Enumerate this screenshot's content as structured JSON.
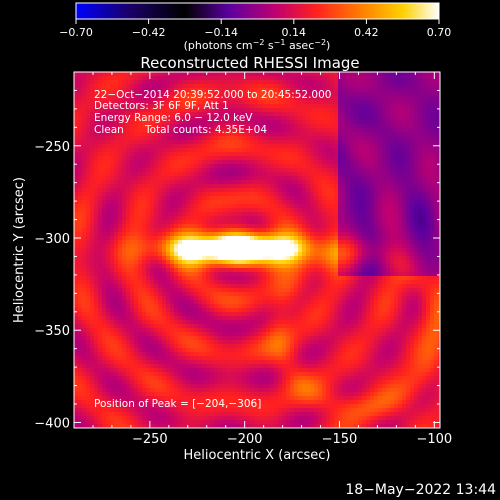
{
  "colorbar": {
    "tick_labels": [
      "−0.70",
      "−0.42",
      "−0.14",
      "0.14",
      "0.42",
      "0.70"
    ],
    "tick_values": [
      -0.7,
      -0.42,
      -0.14,
      0.14,
      0.42,
      0.7
    ],
    "range": [
      -0.7,
      0.7
    ],
    "units_prefix": "(photons cm",
    "units_exp1": "−2",
    "units_mid1": " s",
    "units_exp2": "−1",
    "units_mid2": " asec",
    "units_exp3": "−2",
    "units_suffix": ")",
    "colormap": [
      "#0000ff",
      "#1a0066",
      "#000000",
      "#5a00a0",
      "#c00070",
      "#ff2020",
      "#ff7a00",
      "#ffd000",
      "#ffffff"
    ]
  },
  "chart_data": {
    "type": "heatmap",
    "title": "Reconstructed RHESSI Image",
    "xlabel": "Heliocentric X (arcsec)",
    "ylabel": "Heliocentric Y (arcsec)",
    "xlim": [
      -290,
      -97
    ],
    "ylim": [
      -403,
      -210
    ],
    "xticks": [
      -250,
      -200,
      -150,
      -100
    ],
    "yticks": [
      -250,
      -300,
      -350,
      -400
    ],
    "xtick_labels": [
      "−250",
      "−200",
      "−150",
      "−100"
    ],
    "ytick_labels": [
      "−250",
      "−300",
      "−350",
      "−400"
    ],
    "peak": [
      -204,
      -306
    ],
    "annotations": {
      "line1": "22−Oct−2014 20:39:52.000 to 20:45:52.000",
      "line2": "Detectors: 3F 6F 9F, Att 1",
      "line3": "Energy Range: 6.0 − 12.0 keV",
      "line4_a": "Clean",
      "line4_b": "Total counts: 4.35E+04",
      "peak_text": "Position of Peak = [−204,−306]"
    }
  },
  "footer": {
    "timestamp": "18−May−2022 13:44"
  }
}
